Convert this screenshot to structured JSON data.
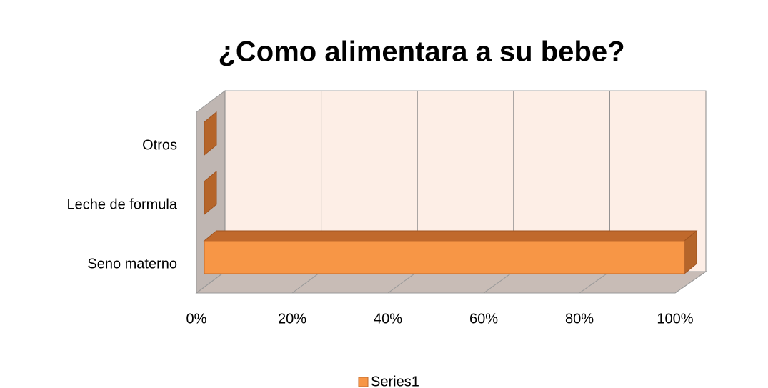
{
  "chart_data": {
    "type": "bar3d_horizontal",
    "title": "¿Como alimentara a su bebe?",
    "categories": [
      "Seno materno",
      "Leche de formula",
      "Otros"
    ],
    "series": [
      {
        "name": "Series1",
        "color": "#f79646",
        "values": [
          100,
          0,
          0
        ]
      }
    ],
    "xlim": [
      0,
      100
    ],
    "xticks": [
      {
        "value": 0,
        "label": "0%"
      },
      {
        "value": 20,
        "label": "20%"
      },
      {
        "value": 40,
        "label": "40%"
      },
      {
        "value": 60,
        "label": "60%"
      },
      {
        "value": 80,
        "label": "80%"
      },
      {
        "value": 100,
        "label": "100%"
      }
    ],
    "grid": true,
    "legend": "bottom"
  }
}
